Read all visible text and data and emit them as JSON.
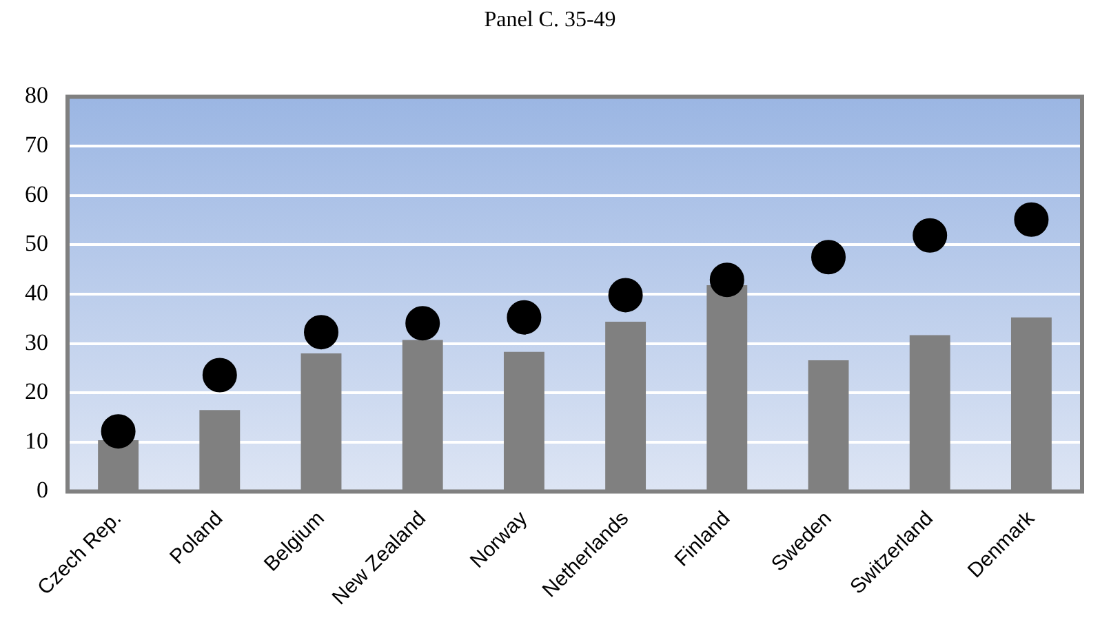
{
  "chart_data": {
    "type": "bar",
    "title": "Panel C. 35-49",
    "categories": [
      "Czech Rep.",
      "Poland",
      "Belgium",
      "New Zealand",
      "Norway",
      "Netherlands",
      "Finland",
      "Sweden",
      "Switzerland",
      "Denmark"
    ],
    "series": [
      {
        "type": "bar",
        "color": "#808080",
        "values": [
          10.4,
          16.5,
          28.0,
          30.7,
          28.3,
          34.4,
          41.8,
          26.6,
          31.7,
          35.3
        ]
      },
      {
        "type": "scatter",
        "color": "#000000",
        "values": [
          12.2,
          23.6,
          32.3,
          34.1,
          35.3,
          39.8,
          42.9,
          47.5,
          51.9,
          55.1
        ]
      }
    ],
    "ylim": [
      0,
      80
    ],
    "yticks": [
      0,
      10,
      20,
      30,
      40,
      50,
      60,
      70,
      80
    ],
    "grid": "y",
    "legend": false,
    "marker": "circle"
  }
}
